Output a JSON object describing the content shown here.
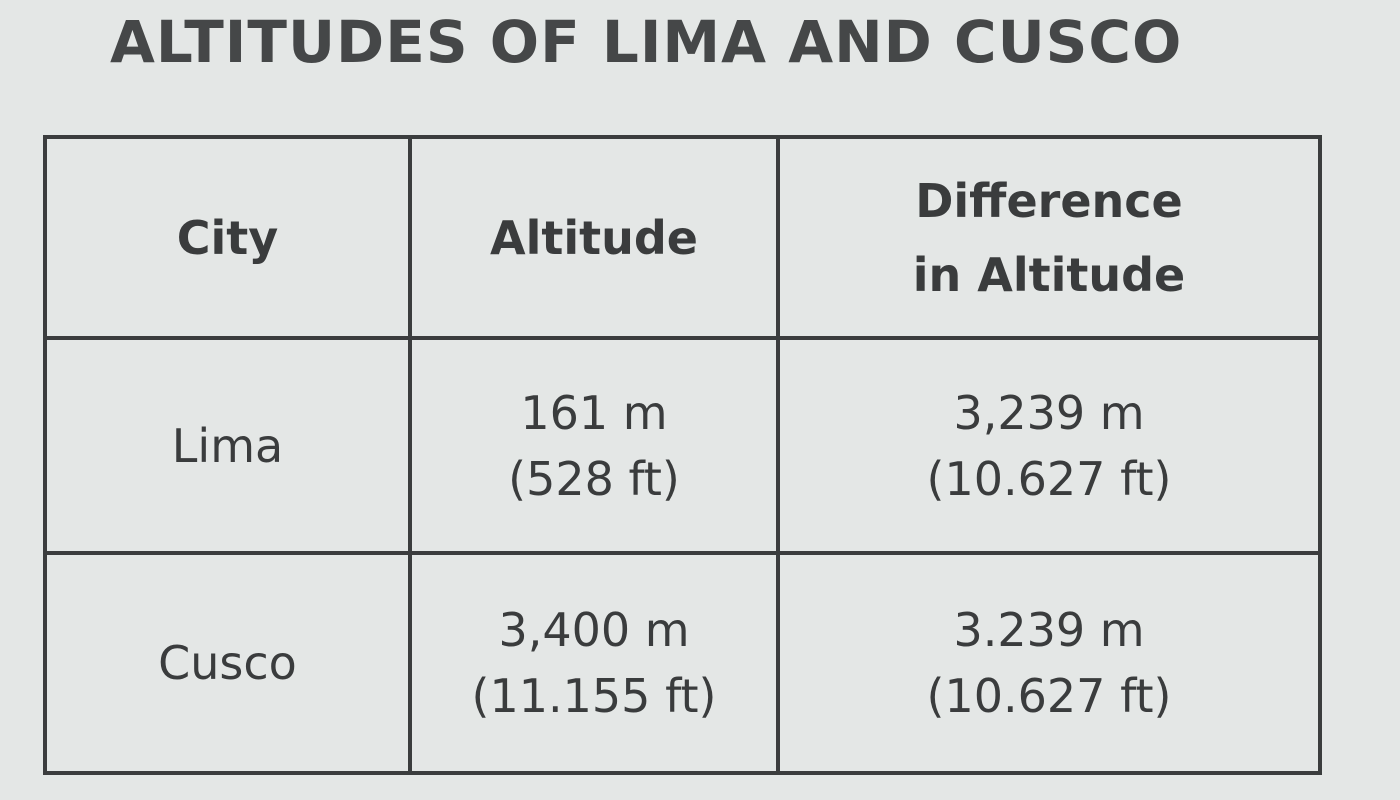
{
  "title": "ALTITUDES OF LIMA AND CUSCO",
  "table": {
    "headers": {
      "city": "City",
      "altitude": "Altitude",
      "difference_line1": "Difference",
      "difference_line2": "in Altitude"
    },
    "rows": [
      {
        "city": "Lima",
        "altitude_m": "161 m",
        "altitude_ft": "(528 ft)",
        "difference_m": "3,239 m",
        "difference_ft": "(10.627 ft)"
      },
      {
        "city": "Cusco",
        "altitude_m": "3,400 m",
        "altitude_ft": "(11.155 ft)",
        "difference_m": "3.239 m",
        "difference_ft": "(10.627 ft)"
      }
    ]
  }
}
